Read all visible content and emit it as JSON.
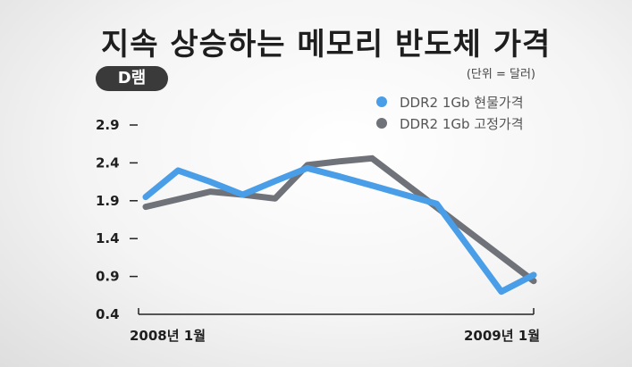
{
  "title": "지속 상승하는 메모리 반도체 가격",
  "badge": "D램",
  "unit_note": "(단위 = 달러)",
  "chart_data": {
    "type": "line",
    "title": "지속 상승하는 메모리 반도체 가격",
    "ylim": [
      0.4,
      2.9
    ],
    "yticks": [
      2.9,
      2.4,
      1.9,
      1.4,
      0.9,
      0.4
    ],
    "x_start_label": "2008년 1월",
    "x_end_label": "2009년 1월",
    "x": [
      0,
      1,
      2,
      3,
      4,
      5,
      6,
      7,
      8,
      9,
      10,
      11,
      12
    ],
    "grid": false,
    "legend_position": "top-right",
    "series": [
      {
        "name": "DDR2 1Gb 현물가격",
        "color": "#4a9ee8",
        "values": [
          1.95,
          2.3,
          2.15,
          1.98,
          2.16,
          2.33,
          2.22,
          2.1,
          1.98,
          1.86,
          null,
          0.7,
          0.92
        ]
      },
      {
        "name": "DDR2 1Gb 고정가격",
        "color": "#6f7278",
        "values": [
          1.82,
          null,
          2.02,
          1.98,
          1.93,
          2.37,
          2.42,
          2.46,
          null,
          null,
          null,
          null,
          0.84
        ]
      }
    ]
  }
}
